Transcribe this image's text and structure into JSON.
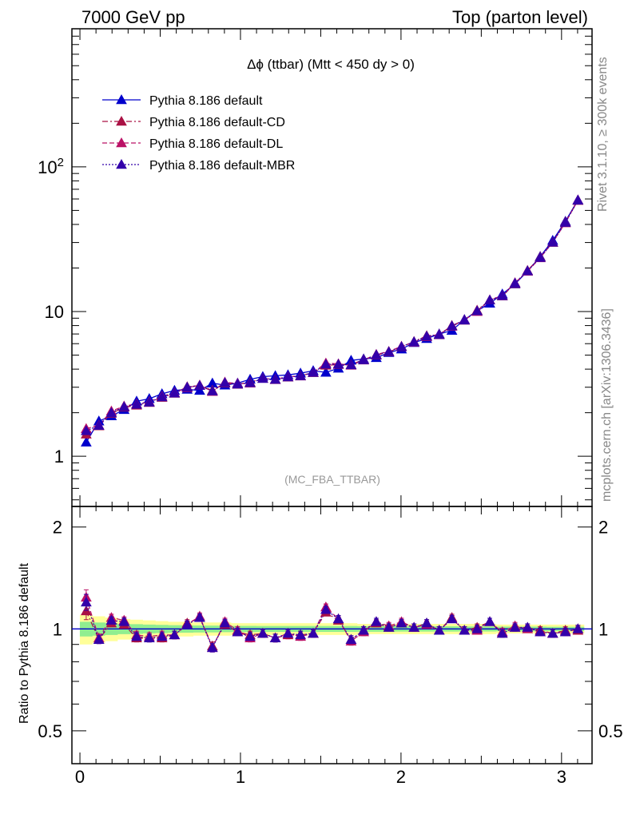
{
  "header": {
    "left": "7000 GeV pp",
    "right": "Top (parton level)"
  },
  "side": {
    "rivet": "Rivet 3.1.10, ≥ 300k events",
    "mcplots": "mcplots.cern.ch [arXiv:1306.3436]"
  },
  "chart_data": {
    "type": "line",
    "title": "Δϕ (ttbar) (Mtt < 450 dy > 0)",
    "analysis_label": "(MC_FBA_TTBAR)",
    "xlabel": "",
    "ylabel_main": "",
    "ylabel_ratio": "Ratio to Pythia 8.186 default",
    "xlim": [
      -0.05,
      3.19
    ],
    "ylim_main": [
      0.45,
      900
    ],
    "yscale_main": "log",
    "ylim_ratio": [
      0.4,
      2.3
    ],
    "yscale_ratio": "log",
    "x_ticks": [
      "0",
      "1",
      "2",
      "3"
    ],
    "y_ticks_main": [
      "1",
      "10",
      "10^2"
    ],
    "y_ticks_ratio": [
      "0.5",
      "1",
      "2"
    ],
    "legend_position": "top-left",
    "x": [
      0.039,
      0.118,
      0.196,
      0.275,
      0.353,
      0.432,
      0.511,
      0.589,
      0.668,
      0.746,
      0.825,
      0.903,
      0.982,
      1.06,
      1.139,
      1.217,
      1.296,
      1.374,
      1.453,
      1.532,
      1.61,
      1.689,
      1.767,
      1.846,
      1.924,
      2.003,
      2.081,
      2.16,
      2.238,
      2.317,
      2.395,
      2.474,
      2.553,
      2.631,
      2.71,
      2.788,
      2.867,
      2.945,
      3.024,
      3.102
    ],
    "series": [
      {
        "name": "Pythia 8.186 default",
        "color": "#0000cc",
        "dash": "solid",
        "values": [
          1.25,
          1.75,
          1.9,
          2.1,
          2.4,
          2.5,
          2.7,
          2.85,
          2.9,
          2.85,
          3.2,
          3.1,
          3.2,
          3.4,
          3.55,
          3.6,
          3.65,
          3.75,
          3.9,
          3.8,
          4.05,
          4.6,
          4.7,
          4.8,
          5.2,
          5.5,
          6.1,
          6.5,
          7.0,
          7.4,
          8.8,
          10.1,
          11.4,
          13.2,
          15.5,
          19.0,
          24.0,
          31.0,
          42.0,
          59.0
        ]
      },
      {
        "name": "Pythia 8.186 default-CD",
        "color": "#aa1144",
        "dash": "dashdot",
        "values": [
          1.42,
          1.62,
          1.98,
          2.18,
          2.25,
          2.35,
          2.55,
          2.72,
          3.02,
          3.08,
          2.85,
          3.2,
          3.14,
          3.25,
          3.45,
          3.38,
          3.52,
          3.6,
          3.78,
          4.25,
          4.3,
          4.3,
          4.65,
          5.0,
          5.25,
          5.7,
          6.2,
          6.8,
          6.9,
          8.0,
          8.7,
          10.2,
          12.0,
          12.8,
          15.6,
          19.2,
          23.8,
          30.0,
          41.5,
          58.5
        ]
      },
      {
        "name": "Pythia 8.186 default-DL",
        "color": "#bb1166",
        "dash": "dashed",
        "values": [
          1.55,
          1.64,
          2.05,
          2.22,
          2.3,
          2.38,
          2.6,
          2.75,
          2.98,
          3.1,
          2.8,
          3.25,
          3.18,
          3.2,
          3.45,
          3.4,
          3.55,
          3.58,
          3.8,
          4.4,
          4.35,
          4.25,
          4.62,
          5.05,
          5.3,
          5.75,
          6.15,
          6.7,
          6.95,
          7.9,
          8.75,
          10.0,
          12.0,
          12.9,
          15.8,
          19.0,
          23.5,
          30.2,
          41.0,
          59.0
        ]
      },
      {
        "name": "Pythia 8.186 default-MBR",
        "color": "#3300aa",
        "dash": "dotted",
        "values": [
          1.5,
          1.63,
          2.0,
          2.2,
          2.28,
          2.36,
          2.57,
          2.73,
          3.0,
          3.08,
          2.82,
          3.22,
          3.15,
          3.22,
          3.44,
          3.39,
          3.53,
          3.59,
          3.79,
          4.32,
          4.32,
          4.28,
          4.63,
          5.02,
          5.27,
          5.72,
          6.18,
          6.75,
          6.92,
          7.95,
          8.72,
          10.1,
          12.0,
          12.85,
          15.7,
          19.1,
          23.6,
          30.1,
          41.2,
          58.8
        ]
      }
    ],
    "ratio_series": [
      {
        "name": "Pythia 8.186 default-CD",
        "values": [
          1.13,
          0.93,
          1.04,
          1.03,
          0.94,
          0.94,
          0.94,
          0.96,
          1.04,
          1.08,
          0.89,
          1.03,
          0.98,
          0.96,
          0.97,
          0.94,
          0.96,
          0.96,
          0.97,
          1.12,
          1.06,
          0.93,
          0.99,
          1.04,
          1.01,
          1.04,
          1.01,
          1.04,
          0.99,
          1.08,
          0.99,
          1.01,
          1.05,
          0.97,
          1.01,
          1.01,
          0.99,
          0.97,
          0.99,
          0.99
        ]
      },
      {
        "name": "Pythia 8.186 default-DL",
        "values": [
          1.24,
          0.94,
          1.08,
          1.06,
          0.96,
          0.95,
          0.96,
          0.96,
          1.03,
          1.09,
          0.88,
          1.05,
          0.99,
          0.94,
          0.97,
          0.94,
          0.97,
          0.95,
          0.97,
          1.16,
          1.07,
          0.92,
          0.98,
          1.05,
          1.02,
          1.05,
          1.01,
          1.03,
          0.99,
          1.07,
          0.99,
          0.99,
          1.05,
          0.98,
          1.02,
          1.0,
          0.98,
          0.97,
          0.98,
          1.0
        ]
      },
      {
        "name": "Pythia 8.186 default-MBR",
        "values": [
          1.2,
          0.93,
          1.06,
          1.05,
          0.95,
          0.94,
          0.95,
          0.96,
          1.03,
          1.08,
          0.88,
          1.04,
          0.98,
          0.95,
          0.97,
          0.94,
          0.97,
          0.96,
          0.97,
          1.14,
          1.07,
          0.93,
          0.99,
          1.05,
          1.01,
          1.04,
          1.01,
          1.04,
          0.99,
          1.07,
          0.99,
          1.0,
          1.05,
          0.97,
          1.01,
          1.01,
          0.98,
          0.97,
          0.98,
          1.0
        ]
      }
    ],
    "ratio_band_yellow_halfwidth": [
      0.1,
      0.09,
      0.08,
      0.07,
      0.065,
      0.06,
      0.055,
      0.05,
      0.05,
      0.045,
      0.045,
      0.045,
      0.04,
      0.04,
      0.04,
      0.04,
      0.04,
      0.04,
      0.04,
      0.04,
      0.04,
      0.04,
      0.035,
      0.035,
      0.035,
      0.035,
      0.035,
      0.035,
      0.035,
      0.035,
      0.035,
      0.035,
      0.035,
      0.03,
      0.03,
      0.03,
      0.03,
      0.03,
      0.03,
      0.03
    ],
    "ratio_band_green_halfwidth": [
      0.05,
      0.045,
      0.04,
      0.035,
      0.033,
      0.03,
      0.028,
      0.026,
      0.025,
      0.024,
      0.023,
      0.022,
      0.021,
      0.021,
      0.02,
      0.02,
      0.02,
      0.02,
      0.02,
      0.02,
      0.02,
      0.02,
      0.019,
      0.019,
      0.019,
      0.018,
      0.018,
      0.018,
      0.018,
      0.018,
      0.017,
      0.017,
      0.017,
      0.016,
      0.016,
      0.016,
      0.016,
      0.015,
      0.015,
      0.015
    ]
  }
}
